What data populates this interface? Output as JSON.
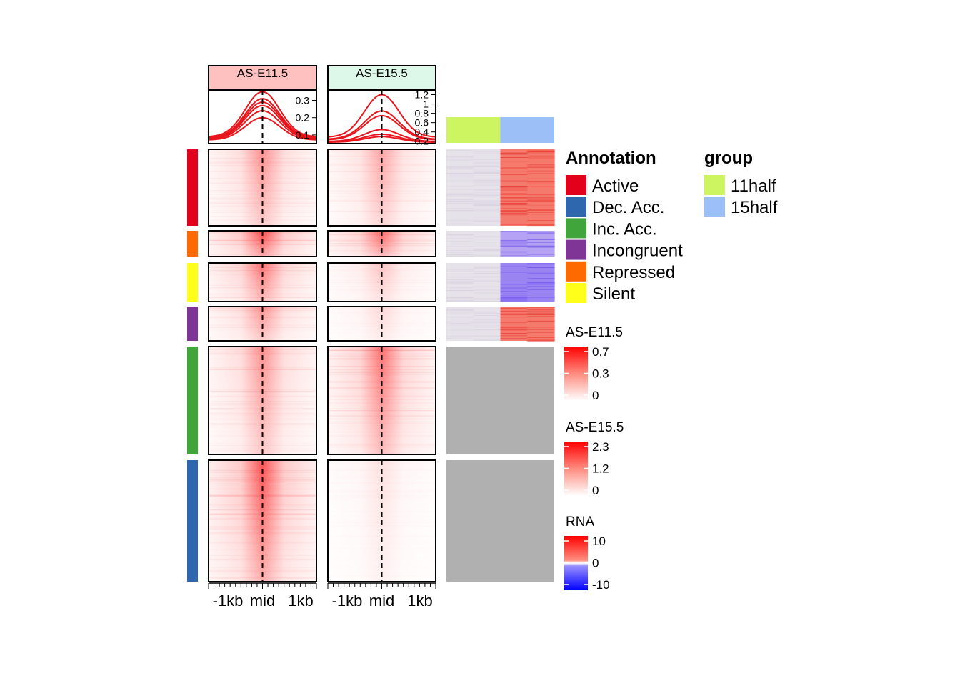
{
  "chart_data": {
    "type": "heatmap",
    "panels": [
      {
        "name": "AS-E11.5",
        "header_color": "#FFC0C0",
        "profile_ticks": [
          0.1,
          0.2,
          0.3
        ],
        "profile_range": [
          0.05,
          0.36
        ],
        "profile_lines": [
          {
            "group": "Active",
            "peak": 0.29
          },
          {
            "group": "Repressed",
            "peak": 0.35
          },
          {
            "group": "Silent",
            "peak": 0.31
          },
          {
            "group": "Incongruent",
            "peak": 0.24
          },
          {
            "group": "Inc. Acc.",
            "peak": 0.2
          },
          {
            "group": "Dec. Acc.",
            "peak": 0.27
          }
        ]
      },
      {
        "name": "AS-E15.5",
        "header_color": "#DDF8E8",
        "profile_ticks": [
          0.2,
          0.4,
          0.6,
          0.8,
          1,
          1.2
        ],
        "profile_range": [
          0.15,
          1.3
        ],
        "profile_lines": [
          {
            "group": "Active",
            "peak": 0.75
          },
          {
            "group": "Repressed",
            "peak": 0.85
          },
          {
            "group": "Silent",
            "peak": 0.45
          },
          {
            "group": "Incongruent",
            "peak": 0.35
          },
          {
            "group": "Inc. Acc.",
            "peak": 1.2
          },
          {
            "group": "Dec. Acc.",
            "peak": 0.3
          }
        ]
      }
    ],
    "x_tick_labels": [
      "-1kb",
      "mid",
      "1kb"
    ],
    "row_groups": [
      {
        "name": "Active",
        "color": "#E3001B",
        "rows": 108,
        "rna": "up"
      },
      {
        "name": "Repressed",
        "color": "#FF6A00",
        "rows": 37,
        "rna": "down"
      },
      {
        "name": "Silent",
        "color": "#FFFF1A",
        "rows": 54,
        "rna": "down"
      },
      {
        "name": "Incongruent",
        "color": "#7E3596",
        "rows": 50,
        "rna": "up"
      },
      {
        "name": "Inc. Acc.",
        "color": "#40A63C",
        "rows": 152,
        "rna": "na"
      },
      {
        "name": "Dec. Acc.",
        "color": "#2E67AD",
        "rows": 171,
        "rna": "na"
      }
    ],
    "group_annotation": [
      {
        "name": "11half",
        "color": "#CCF561"
      },
      {
        "name": "15half",
        "color": "#9DBFF8"
      }
    ],
    "legends": {
      "annotation_title": "Annotation",
      "group_title": "group",
      "color_scales": [
        {
          "title": "AS-E11.5",
          "ticks": [
            "0.7",
            "0.3",
            "0"
          ],
          "max": 0.7
        },
        {
          "title": "AS-E15.5",
          "ticks": [
            "2.3",
            "1.2",
            "0"
          ],
          "max": 2.3
        },
        {
          "title": "RNA",
          "ticks": [
            "10",
            "0",
            "-10"
          ],
          "max": 10
        }
      ]
    },
    "colors": {
      "heat_low": "#FFFFFF",
      "heat_high": "#FF0000",
      "rna_low": "#0000FF",
      "na": "#B0B0B0"
    }
  }
}
